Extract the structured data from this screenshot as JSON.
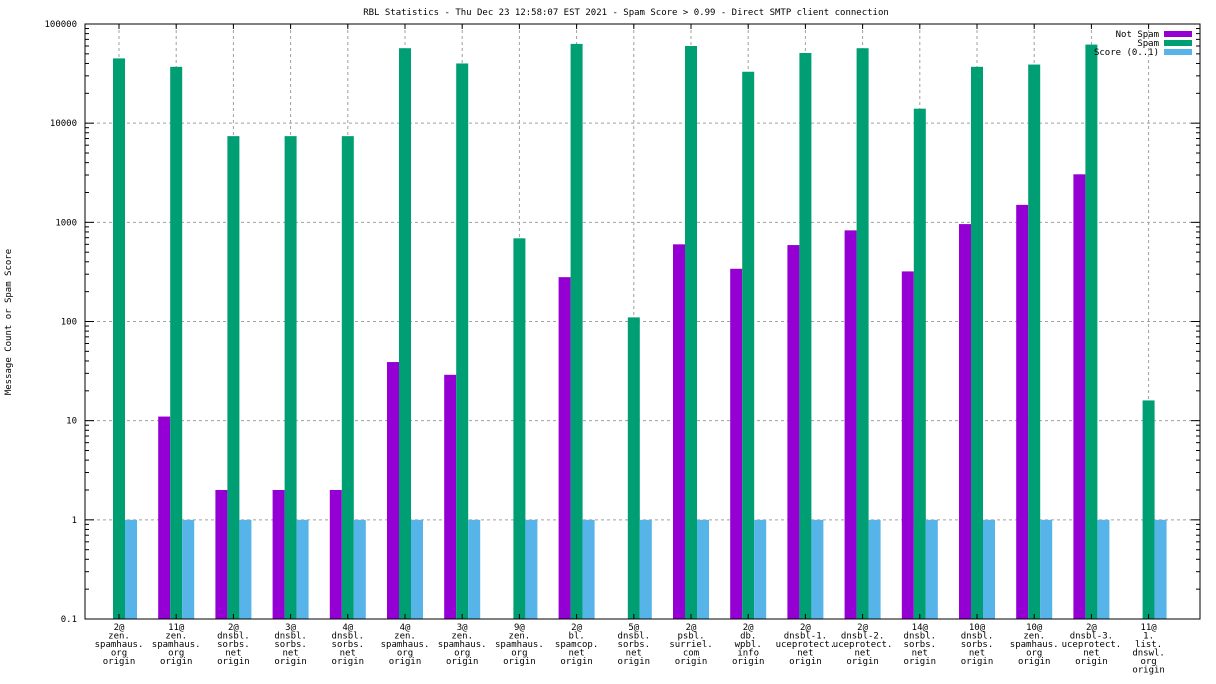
{
  "chart_data": {
    "type": "bar",
    "title": "RBL Statistics - Thu Dec 23 12:58:07 EST 2021 - Spam Score > 0.99 - Direct SMTP client connection",
    "xlabel": "",
    "ylabel": "Message Count or Spam Score",
    "yscale": "log",
    "ylim": [
      0.1,
      100000
    ],
    "yticks": [
      "0.1",
      "1",
      "10",
      "100",
      "1000",
      "10000",
      "100000"
    ],
    "ytick_values": [
      0.1,
      1,
      10,
      100,
      1000,
      10000,
      100000
    ],
    "grid": true,
    "legend_position": "top-right",
    "categories": [
      [
        "2@",
        "zen.",
        "spamhaus.",
        "org",
        "origin"
      ],
      [
        "11@",
        "zen.",
        "spamhaus.",
        "org",
        "origin"
      ],
      [
        "2@",
        "dnsbl.",
        "sorbs.",
        "net",
        "origin"
      ],
      [
        "3@",
        "dnsbl.",
        "sorbs.",
        "net",
        "origin"
      ],
      [
        "4@",
        "dnsbl.",
        "sorbs.",
        "net",
        "origin"
      ],
      [
        "4@",
        "zen.",
        "spamhaus.",
        "org",
        "origin"
      ],
      [
        "3@",
        "zen.",
        "spamhaus.",
        "org",
        "origin"
      ],
      [
        "9@",
        "zen.",
        "spamhaus.",
        "org",
        "origin"
      ],
      [
        "2@",
        "bl.",
        "spamcop.",
        "net",
        "origin"
      ],
      [
        "5@",
        "dnsbl.",
        "sorbs.",
        "net",
        "origin"
      ],
      [
        "2@",
        "psbl.",
        "surriel.",
        "com",
        "origin"
      ],
      [
        "2@",
        "db.",
        "wpbl.",
        "info",
        "origin"
      ],
      [
        "2@",
        "dnsbl-1.",
        "uceprotect.",
        "net",
        "origin"
      ],
      [
        "2@",
        "dnsbl-2.",
        "uceprotect.",
        "net",
        "origin"
      ],
      [
        "14@",
        "dnsbl.",
        "sorbs.",
        "net",
        "origin"
      ],
      [
        "10@",
        "dnsbl.",
        "sorbs.",
        "net",
        "origin"
      ],
      [
        "10@",
        "zen.",
        "spamhaus.",
        "org",
        "origin"
      ],
      [
        "2@",
        "dnsbl-3.",
        "uceprotect.",
        "net",
        "origin"
      ],
      [
        "11@",
        "1.",
        "list.",
        "dnswl.",
        "org",
        "origin"
      ]
    ],
    "series": [
      {
        "name": "Not Spam",
        "color": "#9400d3",
        "values": [
          0,
          11,
          2,
          2,
          2,
          39,
          29,
          0,
          280,
          0,
          600,
          340,
          590,
          830,
          320,
          960,
          1500,
          3050,
          0
        ]
      },
      {
        "name": "Spam",
        "color": "#009e73",
        "values": [
          45000,
          37000,
          7400,
          7400,
          7400,
          57000,
          40000,
          690,
          63000,
          110,
          60000,
          33000,
          51000,
          57000,
          14000,
          37000,
          39000,
          62000,
          16
        ]
      },
      {
        "name": "Score (0..1)",
        "color": "#56b4e9",
        "values": [
          1,
          1,
          1,
          1,
          1,
          1,
          1,
          1,
          1,
          1,
          1,
          1,
          1,
          1,
          1,
          1,
          1,
          1,
          1
        ]
      }
    ]
  }
}
